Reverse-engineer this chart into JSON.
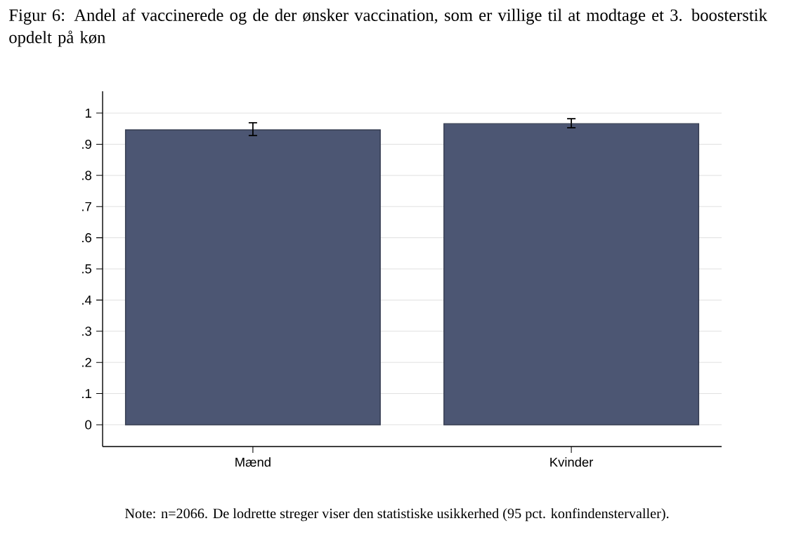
{
  "chart_data": {
    "type": "bar",
    "title": "Figur 6: Andel af vaccinerede og de der ønsker vaccination, som er villige til at modtage et 3. boosterstik opdelt på køn",
    "annotations": [
      "Note: n=2066. De lodrette streger viser den statistiske usikkerhed (95 pct. konfindenstervaller)."
    ],
    "categories": [
      "Mænd",
      "Kvinder"
    ],
    "values": [
      0.946,
      0.966
    ],
    "errors": [
      [
        0.928,
        0.969
      ],
      [
        0.953,
        0.982
      ]
    ],
    "color": "#4c5673",
    "ylim": [
      -0.07,
      1.07
    ],
    "yticks": [
      0,
      {
        "value": 0.1,
        "label": ".1"
      },
      {
        "value": 0.2,
        "label": ".2"
      },
      {
        "value": 0.3,
        "label": ".3"
      },
      {
        "value": 0.4,
        "label": ".4"
      },
      {
        "value": 0.5,
        "label": ".5"
      },
      {
        "value": 0.6,
        "label": ".6"
      },
      {
        "value": 0.7,
        "label": ".7"
      },
      {
        "value": 0.8,
        "label": ".8"
      },
      {
        "value": 0.9,
        "label": ".9"
      },
      1
    ],
    "grid": "y"
  }
}
